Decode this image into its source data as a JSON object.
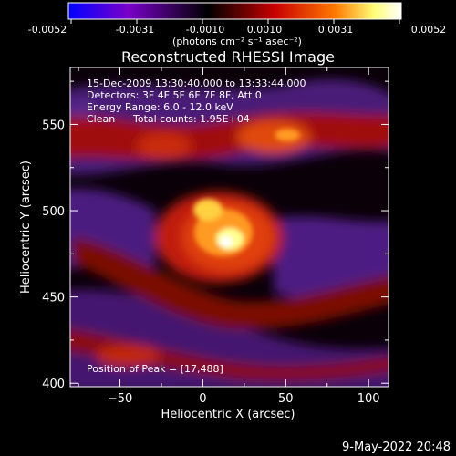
{
  "colorbar": {
    "tick_labels": [
      "-0.0052",
      "-0.0031",
      "-0.0010",
      "0.0010",
      "0.0031",
      "0.0052"
    ],
    "units": "(photons cm⁻² s⁻¹ asec⁻²)",
    "range": [
      -0.0052,
      0.0052
    ],
    "colormap": [
      "#0000ff",
      "#7a00c8",
      "#000000",
      "#c80000",
      "#ff7800",
      "#ffff78",
      "#ffffff"
    ]
  },
  "chart_data": {
    "type": "heatmap",
    "title": "Reconstructed RHESSI Image",
    "xlabel": "Heliocentric X (arcsec)",
    "ylabel": "Heliocentric Y (arcsec)",
    "xlim": [
      -80,
      112
    ],
    "ylim": [
      398,
      583
    ],
    "xticks": [
      -50,
      0,
      50,
      100
    ],
    "yticks": [
      400,
      450,
      500,
      550
    ],
    "annotations": [
      "15-Dec-2009 13:30:40.000 to 13:33:44.000",
      "Detectors: 3F 4F 5F 6F 7F 8F, Att 0",
      "Energy Range: 6.0 - 12.0 keV",
      "Clean",
      "Total counts: 1.95E+04"
    ],
    "peak_label": "Position of Peak = [17,488]",
    "peak": [
      17,
      488
    ]
  },
  "footer": {
    "date": "9-May-2022 20:48"
  }
}
